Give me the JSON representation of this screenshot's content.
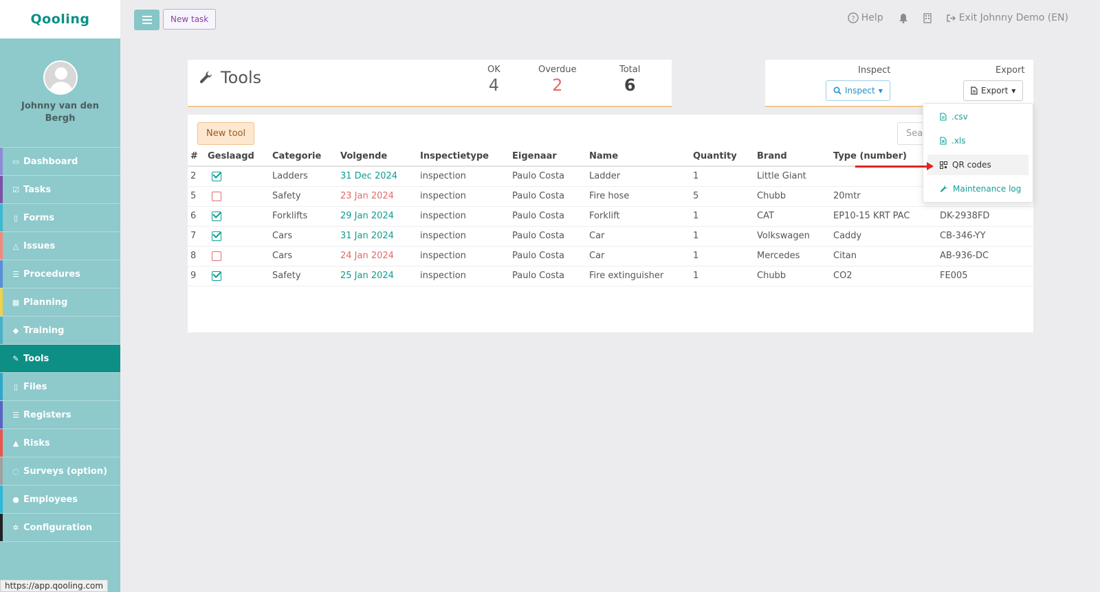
{
  "app": {
    "logo": "Qooling",
    "status_url": "https://app.qooling.com"
  },
  "topbar": {
    "new_task": "New task",
    "help": "Help",
    "exit": "Exit Johnny Demo (EN)"
  },
  "user": {
    "name": "Johnny van den Bergh"
  },
  "sidebar": {
    "items": [
      {
        "label": "Dashboard",
        "icon": "monitor-icon",
        "color": "#8c8cd4"
      },
      {
        "label": "Tasks",
        "icon": "check-square-icon",
        "color": "#7d51a8"
      },
      {
        "label": "Forms",
        "icon": "document-icon",
        "color": "#3fb8d2"
      },
      {
        "label": "Issues",
        "icon": "bell-icon",
        "color": "#f08a7a"
      },
      {
        "label": "Procedures",
        "icon": "list-icon",
        "color": "#5b8fd6"
      },
      {
        "label": "Planning",
        "icon": "calendar-icon",
        "color": "#f0d24a"
      },
      {
        "label": "Training",
        "icon": "graduation-cap-icon",
        "color": "#4ab0c8"
      },
      {
        "label": "Tools",
        "icon": "wrench-icon",
        "color": "#0d8f86",
        "active": true
      },
      {
        "label": "Files",
        "icon": "file-icon",
        "color": "#2fa6c8"
      },
      {
        "label": "Registers",
        "icon": "list-icon",
        "color": "#5b62c4"
      },
      {
        "label": "Risks",
        "icon": "warning-icon",
        "color": "#e8564f"
      },
      {
        "label": "Surveys (option)",
        "icon": "comments-icon",
        "color": "#a0a0a0"
      },
      {
        "label": "Employees",
        "icon": "users-icon",
        "color": "#2fb7d8"
      },
      {
        "label": "Configuration",
        "icon": "gear-icon",
        "color": "#222222"
      }
    ]
  },
  "tools": {
    "title": "Tools",
    "stats": {
      "ok_label": "OK",
      "ok": "4",
      "overdue_label": "Overdue",
      "overdue": "2",
      "total_label": "Total",
      "total": "6"
    },
    "inspect_label": "Inspect",
    "inspect_button": "Inspect",
    "export_label": "Export",
    "export_button": "Export",
    "new_tool": "New tool",
    "search_placeholder": "Sea"
  },
  "export_menu": {
    "items": [
      {
        "label": ".csv",
        "icon": "file-icon"
      },
      {
        "label": ".xls",
        "icon": "excel-file-icon"
      },
      {
        "label": "QR codes",
        "icon": "qrcode-icon"
      },
      {
        "label": "Maintenance log",
        "icon": "wrench-icon"
      }
    ]
  },
  "table": {
    "headers": [
      "#",
      "Geslaagd",
      "Categorie",
      "Volgende",
      "Inspectietype",
      "Eigenaar",
      "Name",
      "Quantity",
      "Brand",
      "Type (number)",
      ""
    ],
    "rows": [
      {
        "id": "2",
        "passed": true,
        "category": "Ladders",
        "next": "31 Dec 2024",
        "overdue": false,
        "type": "inspection",
        "owner": "Paulo Costa",
        "name": "Ladder",
        "quantity": "1",
        "brand": "Little Giant",
        "model": "",
        "serial": ""
      },
      {
        "id": "5",
        "passed": false,
        "category": "Safety",
        "next": "23 Jan 2024",
        "overdue": true,
        "type": "inspection",
        "owner": "Paulo Costa",
        "name": "Fire hose",
        "quantity": "5",
        "brand": "Chubb",
        "model": "20mtr",
        "serial": ""
      },
      {
        "id": "6",
        "passed": true,
        "category": "Forklifts",
        "next": "29 Jan 2024",
        "overdue": false,
        "type": "inspection",
        "owner": "Paulo Costa",
        "name": "Forklift",
        "quantity": "1",
        "brand": "CAT",
        "model": "EP10-15 KRT PAC",
        "serial": "DK-2938FD"
      },
      {
        "id": "7",
        "passed": true,
        "category": "Cars",
        "next": "31 Jan 2024",
        "overdue": false,
        "type": "inspection",
        "owner": "Paulo Costa",
        "name": "Car",
        "quantity": "1",
        "brand": "Volkswagen",
        "model": "Caddy",
        "serial": "CB-346-YY"
      },
      {
        "id": "8",
        "passed": false,
        "category": "Cars",
        "next": "24 Jan 2024",
        "overdue": true,
        "type": "inspection",
        "owner": "Paulo Costa",
        "name": "Car",
        "quantity": "1",
        "brand": "Mercedes",
        "model": "Citan",
        "serial": "AB-936-DC"
      },
      {
        "id": "9",
        "passed": true,
        "category": "Safety",
        "next": "25 Jan 2024",
        "overdue": false,
        "type": "inspection",
        "owner": "Paulo Costa",
        "name": "Fire extinguisher",
        "quantity": "1",
        "brand": "Chubb",
        "model": "CO2",
        "serial": "FE005"
      }
    ]
  }
}
